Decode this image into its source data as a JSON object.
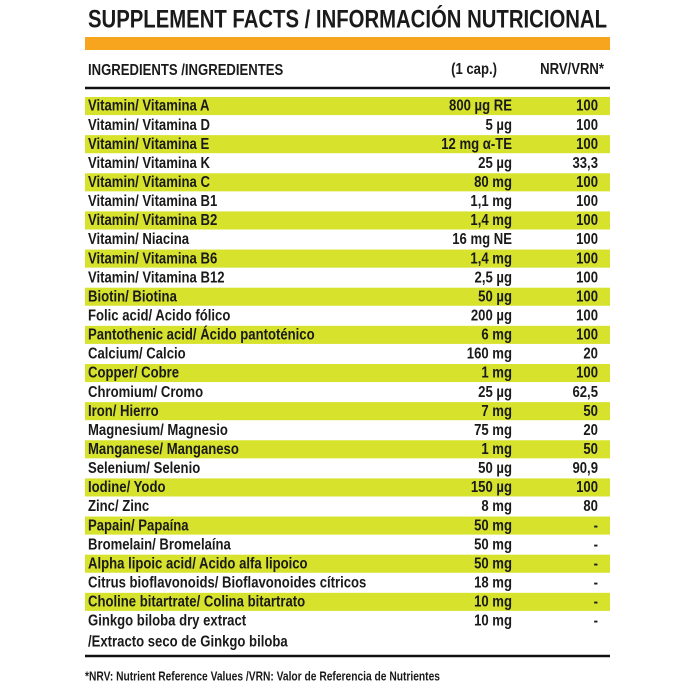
{
  "header": {
    "title": "SUPPLEMENT FACTS / INFORMACIÓN NUTRICIONAL"
  },
  "table": {
    "columns": [
      "INGREDIENTS /INGREDIENTES",
      "(1 cap.)",
      "NRV/VRN*"
    ],
    "rows": [
      {
        "ingredient": "Vitamin/ Vitamina A",
        "amount": "800 µg RE",
        "nrv": "100"
      },
      {
        "ingredient": "Vitamin/ Vitamina D",
        "amount": "5 µg",
        "nrv": "100"
      },
      {
        "ingredient": "Vitamin/ Vitamina E",
        "amount": "12 mg α-TE",
        "nrv": "100"
      },
      {
        "ingredient": "Vitamin/ Vitamina K",
        "amount": "25 µg",
        "nrv": "33,3"
      },
      {
        "ingredient": "Vitamin/ Vitamina C",
        "amount": "80 mg",
        "nrv": "100"
      },
      {
        "ingredient": "Vitamin/ Vitamina B1",
        "amount": "1,1 mg",
        "nrv": "100"
      },
      {
        "ingredient": "Vitamin/ Vitamina B2",
        "amount": "1,4 mg",
        "nrv": "100"
      },
      {
        "ingredient": "Vitamin/ Niacina",
        "amount": "16 mg NE",
        "nrv": "100"
      },
      {
        "ingredient": "Vitamin/ Vitamina B6",
        "amount": "1,4 mg",
        "nrv": "100"
      },
      {
        "ingredient": "Vitamin/ Vitamina B12",
        "amount": "2,5 µg",
        "nrv": "100"
      },
      {
        "ingredient": "Biotin/ Biotina",
        "amount": "50 µg",
        "nrv": "100"
      },
      {
        "ingredient": "Folic acid/ Acido fólico",
        "amount": "200 µg",
        "nrv": "100"
      },
      {
        "ingredient": "Pantothenic acid/ Ácido pantoténico",
        "amount": "6 mg",
        "nrv": "100"
      },
      {
        "ingredient": "Calcium/ Calcio",
        "amount": "160 mg",
        "nrv": "20"
      },
      {
        "ingredient": "Copper/ Cobre",
        "amount": "1 mg",
        "nrv": "100"
      },
      {
        "ingredient": "Chromium/ Cromo",
        "amount": "25 µg",
        "nrv": "62,5"
      },
      {
        "ingredient": "Iron/ Hierro",
        "amount": "7 mg",
        "nrv": "50"
      },
      {
        "ingredient": "Magnesium/ Magnesio",
        "amount": "75 mg",
        "nrv": "20"
      },
      {
        "ingredient": "Manganese/ Manganeso",
        "amount": "1 mg",
        "nrv": "50"
      },
      {
        "ingredient": "Selenium/ Selenio",
        "amount": "50 µg",
        "nrv": "90,9"
      },
      {
        "ingredient": "Iodine/ Yodo",
        "amount": "150 µg",
        "nrv": "100"
      },
      {
        "ingredient": "Zinc/ Zinc",
        "amount": "8 mg",
        "nrv": "80"
      },
      {
        "ingredient": "Papain/ Papaína",
        "amount": "50 mg",
        "nrv": "-"
      },
      {
        "ingredient": "Bromelain/ Bromelaína",
        "amount": "50 mg",
        "nrv": "-"
      },
      {
        "ingredient": "Alpha lipoic acid/ Acido alfa lipoico",
        "amount": "50 mg",
        "nrv": "-"
      },
      {
        "ingredient": "Citrus bioflavonoids/ Bioflavonoides cítricos",
        "amount": "18 mg",
        "nrv": "-"
      },
      {
        "ingredient": "Choline bitartrate/ Colina bitartrato",
        "amount": "10 mg",
        "nrv": "-"
      },
      {
        "ingredient": "Ginkgo biloba dry extract",
        "ingredient_line2": "/Extracto seco de Ginkgo biloba",
        "amount": "10 mg",
        "nrv": "-"
      }
    ]
  },
  "footnote": "*NRV: Nutrient Reference Values /VRN: Valor de Referencia de Nutrientes"
}
